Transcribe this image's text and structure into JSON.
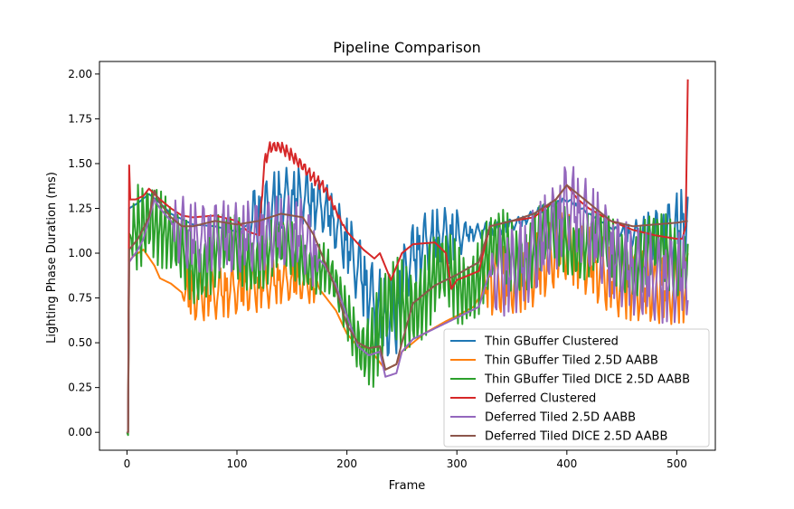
{
  "chart_data": {
    "type": "line",
    "title": "Pipeline Comparison",
    "xlabel": "Frame",
    "ylabel": "Lighting Phase Duration (ms)",
    "xlim": [
      -25,
      535
    ],
    "ylim": [
      -0.1,
      2.07
    ],
    "xticks": [
      0,
      100,
      200,
      300,
      400,
      500
    ],
    "yticks": [
      0.0,
      0.25,
      0.5,
      0.75,
      1.0,
      1.25,
      1.5,
      1.75,
      2.0
    ],
    "ytick_labels": [
      "0.00",
      "0.25",
      "0.50",
      "0.75",
      "1.00",
      "1.25",
      "1.50",
      "1.75",
      "2.00"
    ],
    "legend_position": "lower-right",
    "series": [
      {
        "name": "Thin GBuffer Clustered",
        "color": "#1f77b4",
        "base": [
          [
            0,
            0.0
          ],
          [
            1,
            0.0
          ],
          [
            2,
            1.25
          ],
          [
            10,
            1.28
          ],
          [
            20,
            1.33
          ],
          [
            30,
            1.28
          ],
          [
            40,
            1.22
          ],
          [
            60,
            1.16
          ],
          [
            80,
            1.15
          ],
          [
            100,
            1.12
          ],
          [
            110,
            1.16
          ],
          [
            120,
            1.2
          ],
          [
            140,
            1.3
          ],
          [
            160,
            1.32
          ],
          [
            180,
            1.25
          ],
          [
            200,
            1.05
          ],
          [
            215,
            0.85
          ],
          [
            225,
            0.7
          ],
          [
            235,
            0.62
          ],
          [
            245,
            0.65
          ],
          [
            255,
            0.95
          ],
          [
            270,
            1.05
          ],
          [
            290,
            1.1
          ],
          [
            300,
            1.1
          ],
          [
            320,
            1.12
          ],
          [
            340,
            1.14
          ],
          [
            360,
            1.18
          ],
          [
            380,
            1.25
          ],
          [
            400,
            1.3
          ],
          [
            420,
            1.22
          ],
          [
            440,
            1.14
          ],
          [
            460,
            1.1
          ],
          [
            480,
            1.1
          ],
          [
            500,
            1.12
          ],
          [
            510,
            1.2
          ]
        ],
        "noise": [
          [
            0,
            0
          ],
          [
            110,
            0
          ],
          [
            115,
            0.2
          ],
          [
            170,
            0.15
          ],
          [
            190,
            0.15
          ],
          [
            230,
            0.25
          ],
          [
            250,
            0.2
          ],
          [
            300,
            0.15
          ],
          [
            310,
            0.05
          ],
          [
            440,
            0
          ],
          [
            480,
            0.15
          ],
          [
            510,
            0.25
          ]
        ],
        "period": 3
      },
      {
        "name": "Thin GBuffer Tiled 2.5D AABB",
        "color": "#ff7f0e",
        "base": [
          [
            0,
            0.0
          ],
          [
            1,
            0.0
          ],
          [
            2,
            0.95
          ],
          [
            5,
            0.98
          ],
          [
            15,
            1.02
          ],
          [
            25,
            0.93
          ],
          [
            30,
            0.86
          ],
          [
            40,
            0.83
          ],
          [
            50,
            0.78
          ],
          [
            60,
            0.76
          ],
          [
            80,
            0.78
          ],
          [
            100,
            0.8
          ],
          [
            120,
            0.82
          ],
          [
            140,
            0.85
          ],
          [
            160,
            0.84
          ],
          [
            175,
            0.8
          ],
          [
            190,
            0.68
          ],
          [
            200,
            0.55
          ],
          [
            210,
            0.48
          ],
          [
            220,
            0.47
          ],
          [
            235,
            0.35
          ],
          [
            245,
            0.38
          ],
          [
            250,
            0.45
          ],
          [
            270,
            0.55
          ],
          [
            290,
            0.62
          ],
          [
            300,
            0.65
          ],
          [
            315,
            0.7
          ],
          [
            330,
            0.85
          ],
          [
            350,
            0.85
          ],
          [
            370,
            0.9
          ],
          [
            390,
            1.0
          ],
          [
            400,
            1.05
          ],
          [
            420,
            0.95
          ],
          [
            440,
            0.85
          ],
          [
            460,
            0.82
          ],
          [
            480,
            0.8
          ],
          [
            500,
            0.8
          ],
          [
            510,
            0.82
          ]
        ],
        "noise": [
          [
            0,
            0
          ],
          [
            50,
            0
          ],
          [
            55,
            0.15
          ],
          [
            120,
            0.15
          ],
          [
            170,
            0.1
          ],
          [
            175,
            0
          ],
          [
            320,
            0
          ],
          [
            330,
            0.2
          ],
          [
            440,
            0.2
          ],
          [
            510,
            0.2
          ]
        ],
        "period": 3
      },
      {
        "name": "Thin GBuffer Tiled DICE 2.5D AABB",
        "color": "#2ca02c",
        "base": [
          [
            0,
            0.0
          ],
          [
            1,
            0.0
          ],
          [
            2,
            1.05
          ],
          [
            5,
            1.1
          ],
          [
            15,
            1.25
          ],
          [
            20,
            1.3
          ],
          [
            30,
            1.15
          ],
          [
            40,
            1.0
          ],
          [
            60,
            0.95
          ],
          [
            80,
            1.0
          ],
          [
            100,
            1.0
          ],
          [
            120,
            1.0
          ],
          [
            140,
            1.0
          ],
          [
            160,
            1.0
          ],
          [
            180,
            0.9
          ],
          [
            195,
            0.7
          ],
          [
            210,
            0.55
          ],
          [
            225,
            0.5
          ],
          [
            240,
            0.65
          ],
          [
            260,
            0.78
          ],
          [
            280,
            0.82
          ],
          [
            300,
            0.85
          ],
          [
            320,
            0.9
          ],
          [
            340,
            1.0
          ],
          [
            360,
            1.02
          ],
          [
            380,
            1.05
          ],
          [
            400,
            1.1
          ],
          [
            420,
            1.05
          ],
          [
            440,
            1.0
          ],
          [
            460,
            0.98
          ],
          [
            480,
            0.98
          ],
          [
            500,
            1.0
          ],
          [
            510,
            1.05
          ]
        ],
        "noise": [
          [
            0,
            0
          ],
          [
            10,
            0.3
          ],
          [
            30,
            0.25
          ],
          [
            120,
            0.2
          ],
          [
            200,
            0.15
          ],
          [
            230,
            0.3
          ],
          [
            320,
            0.25
          ],
          [
            440,
            0.2
          ],
          [
            510,
            0.25
          ]
        ],
        "period": 2
      },
      {
        "name": "Deferred Clustered",
        "color": "#d62728",
        "base": [
          [
            0,
            0.0
          ],
          [
            1,
            0.0
          ],
          [
            2,
            1.49
          ],
          [
            3,
            1.3
          ],
          [
            8,
            1.3
          ],
          [
            15,
            1.32
          ],
          [
            20,
            1.36
          ],
          [
            30,
            1.3
          ],
          [
            40,
            1.25
          ],
          [
            50,
            1.21
          ],
          [
            60,
            1.2
          ],
          [
            80,
            1.21
          ],
          [
            100,
            1.18
          ],
          [
            110,
            1.12
          ],
          [
            120,
            1.1
          ],
          [
            125,
            1.5
          ],
          [
            130,
            1.58
          ],
          [
            140,
            1.58
          ],
          [
            150,
            1.55
          ],
          [
            160,
            1.5
          ],
          [
            170,
            1.42
          ],
          [
            180,
            1.35
          ],
          [
            190,
            1.23
          ],
          [
            200,
            1.12
          ],
          [
            215,
            1.02
          ],
          [
            225,
            0.97
          ],
          [
            230,
            1.0
          ],
          [
            240,
            0.85
          ],
          [
            250,
            1.0
          ],
          [
            260,
            1.05
          ],
          [
            280,
            1.06
          ],
          [
            290,
            1.0
          ],
          [
            295,
            0.8
          ],
          [
            300,
            0.85
          ],
          [
            320,
            0.9
          ],
          [
            330,
            1.15
          ],
          [
            350,
            1.18
          ],
          [
            370,
            1.2
          ],
          [
            390,
            1.3
          ],
          [
            400,
            1.38
          ],
          [
            410,
            1.3
          ],
          [
            420,
            1.25
          ],
          [
            440,
            1.18
          ],
          [
            460,
            1.13
          ],
          [
            480,
            1.1
          ],
          [
            500,
            1.08
          ],
          [
            505,
            1.08
          ],
          [
            508,
            1.15
          ],
          [
            510,
            1.97
          ]
        ],
        "noise": [
          [
            0,
            0
          ],
          [
            120,
            0
          ],
          [
            125,
            0.04
          ],
          [
            180,
            0.04
          ],
          [
            200,
            0
          ],
          [
            510,
            0
          ]
        ],
        "period": 2
      },
      {
        "name": "Deferred Tiled 2.5D AABB",
        "color": "#9467bd",
        "base": [
          [
            0,
            0.0
          ],
          [
            1,
            0.0
          ],
          [
            2,
            0.95
          ],
          [
            10,
            1.02
          ],
          [
            15,
            1.08
          ],
          [
            25,
            1.3
          ],
          [
            30,
            1.25
          ],
          [
            40,
            1.18
          ],
          [
            50,
            1.12
          ],
          [
            60,
            1.08
          ],
          [
            80,
            1.1
          ],
          [
            100,
            1.08
          ],
          [
            120,
            1.1
          ],
          [
            140,
            1.12
          ],
          [
            150,
            1.12
          ],
          [
            160,
            1.1
          ],
          [
            170,
            1.0
          ],
          [
            180,
            0.93
          ],
          [
            190,
            0.82
          ],
          [
            200,
            0.65
          ],
          [
            210,
            0.48
          ],
          [
            220,
            0.43
          ],
          [
            230,
            0.45
          ],
          [
            235,
            0.31
          ],
          [
            245,
            0.33
          ],
          [
            250,
            0.45
          ],
          [
            260,
            0.52
          ],
          [
            280,
            0.58
          ],
          [
            300,
            0.64
          ],
          [
            320,
            0.7
          ],
          [
            330,
            0.9
          ],
          [
            350,
            0.9
          ],
          [
            370,
            1.0
          ],
          [
            390,
            1.15
          ],
          [
            400,
            1.28
          ],
          [
            420,
            1.15
          ],
          [
            440,
            1.0
          ],
          [
            460,
            0.9
          ],
          [
            480,
            0.86
          ],
          [
            500,
            0.86
          ],
          [
            510,
            0.9
          ]
        ],
        "noise": [
          [
            0,
            0
          ],
          [
            40,
            0
          ],
          [
            45,
            0.2
          ],
          [
            170,
            0.2
          ],
          [
            175,
            0
          ],
          [
            330,
            0
          ],
          [
            335,
            0.25
          ],
          [
            510,
            0.25
          ]
        ],
        "period": 3
      },
      {
        "name": "Deferred Tiled DICE 2.5D AABB",
        "color": "#8c564b",
        "base": [
          [
            0,
            0.0
          ],
          [
            1,
            0.0
          ],
          [
            2,
            1.02
          ],
          [
            10,
            1.08
          ],
          [
            20,
            1.2
          ],
          [
            25,
            1.35
          ],
          [
            30,
            1.28
          ],
          [
            40,
            1.2
          ],
          [
            50,
            1.15
          ],
          [
            60,
            1.15
          ],
          [
            80,
            1.18
          ],
          [
            100,
            1.16
          ],
          [
            120,
            1.18
          ],
          [
            140,
            1.22
          ],
          [
            160,
            1.2
          ],
          [
            170,
            1.1
          ],
          [
            180,
            0.95
          ],
          [
            190,
            0.8
          ],
          [
            200,
            0.6
          ],
          [
            210,
            0.5
          ],
          [
            220,
            0.47
          ],
          [
            230,
            0.48
          ],
          [
            235,
            0.35
          ],
          [
            245,
            0.38
          ],
          [
            250,
            0.5
          ],
          [
            260,
            0.72
          ],
          [
            280,
            0.82
          ],
          [
            300,
            0.88
          ],
          [
            320,
            0.95
          ],
          [
            330,
            1.15
          ],
          [
            350,
            1.18
          ],
          [
            370,
            1.22
          ],
          [
            390,
            1.3
          ],
          [
            400,
            1.38
          ],
          [
            420,
            1.28
          ],
          [
            440,
            1.18
          ],
          [
            460,
            1.15
          ],
          [
            480,
            1.16
          ],
          [
            500,
            1.17
          ],
          [
            510,
            1.18
          ]
        ],
        "noise": [
          [
            0,
            0
          ],
          [
            510,
            0
          ]
        ],
        "period": 2
      }
    ]
  }
}
